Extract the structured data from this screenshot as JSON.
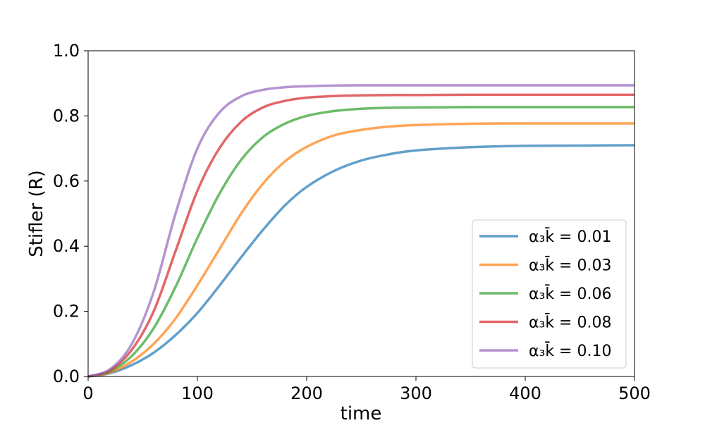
{
  "chart_data": {
    "type": "line",
    "title": "",
    "xlabel": "time",
    "ylabel": "Stifler (R)",
    "xlim": [
      0,
      500
    ],
    "ylim": [
      0,
      1.0
    ],
    "xticks": [
      0,
      100,
      200,
      300,
      400,
      500
    ],
    "xtick_labels": [
      "0",
      "100",
      "200",
      "300",
      "400",
      "500"
    ],
    "yticks": [
      0,
      0.2,
      0.4,
      0.6,
      0.8,
      1.0
    ],
    "ytick_labels": [
      "0.0",
      "0.2",
      "0.4",
      "0.6",
      "0.8",
      "1.0"
    ],
    "grid": false,
    "legend_position": "lower-right",
    "x": [
      0,
      20,
      40,
      60,
      80,
      100,
      120,
      140,
      160,
      180,
      200,
      225,
      250,
      275,
      300,
      350,
      400,
      450,
      500
    ],
    "series": [
      {
        "name": "α₃k̄ = 0.01",
        "color": "#1f77b4",
        "values": [
          0.0,
          0.01,
          0.035,
          0.073,
          0.127,
          0.195,
          0.278,
          0.366,
          0.45,
          0.525,
          0.582,
          0.631,
          0.663,
          0.682,
          0.694,
          0.704,
          0.708,
          0.709,
          0.71
        ]
      },
      {
        "name": "α₃k̄ = 0.03",
        "color": "#ff7f0e",
        "values": [
          0.0,
          0.012,
          0.046,
          0.1,
          0.178,
          0.28,
          0.39,
          0.5,
          0.592,
          0.66,
          0.705,
          0.74,
          0.757,
          0.767,
          0.772,
          0.776,
          0.777,
          0.777,
          0.777
        ]
      },
      {
        "name": "α₃k̄ = 0.06",
        "color": "#2ca02c",
        "values": [
          0.0,
          0.016,
          0.063,
          0.148,
          0.275,
          0.425,
          0.56,
          0.665,
          0.735,
          0.776,
          0.8,
          0.815,
          0.822,
          0.825,
          0.826,
          0.827,
          0.827,
          0.827,
          0.827
        ]
      },
      {
        "name": "α₃k̄ = 0.08",
        "color": "#d62728",
        "values": [
          0.0,
          0.019,
          0.082,
          0.2,
          0.385,
          0.57,
          0.7,
          0.782,
          0.826,
          0.846,
          0.856,
          0.861,
          0.863,
          0.864,
          0.864,
          0.865,
          0.865,
          0.865,
          0.865
        ]
      },
      {
        "name": "α₃k̄ = 0.10",
        "color": "#9467bd",
        "values": [
          0.0,
          0.022,
          0.1,
          0.26,
          0.5,
          0.7,
          0.81,
          0.86,
          0.88,
          0.888,
          0.891,
          0.893,
          0.894,
          0.894,
          0.894,
          0.894,
          0.894,
          0.894,
          0.894
        ]
      }
    ]
  }
}
